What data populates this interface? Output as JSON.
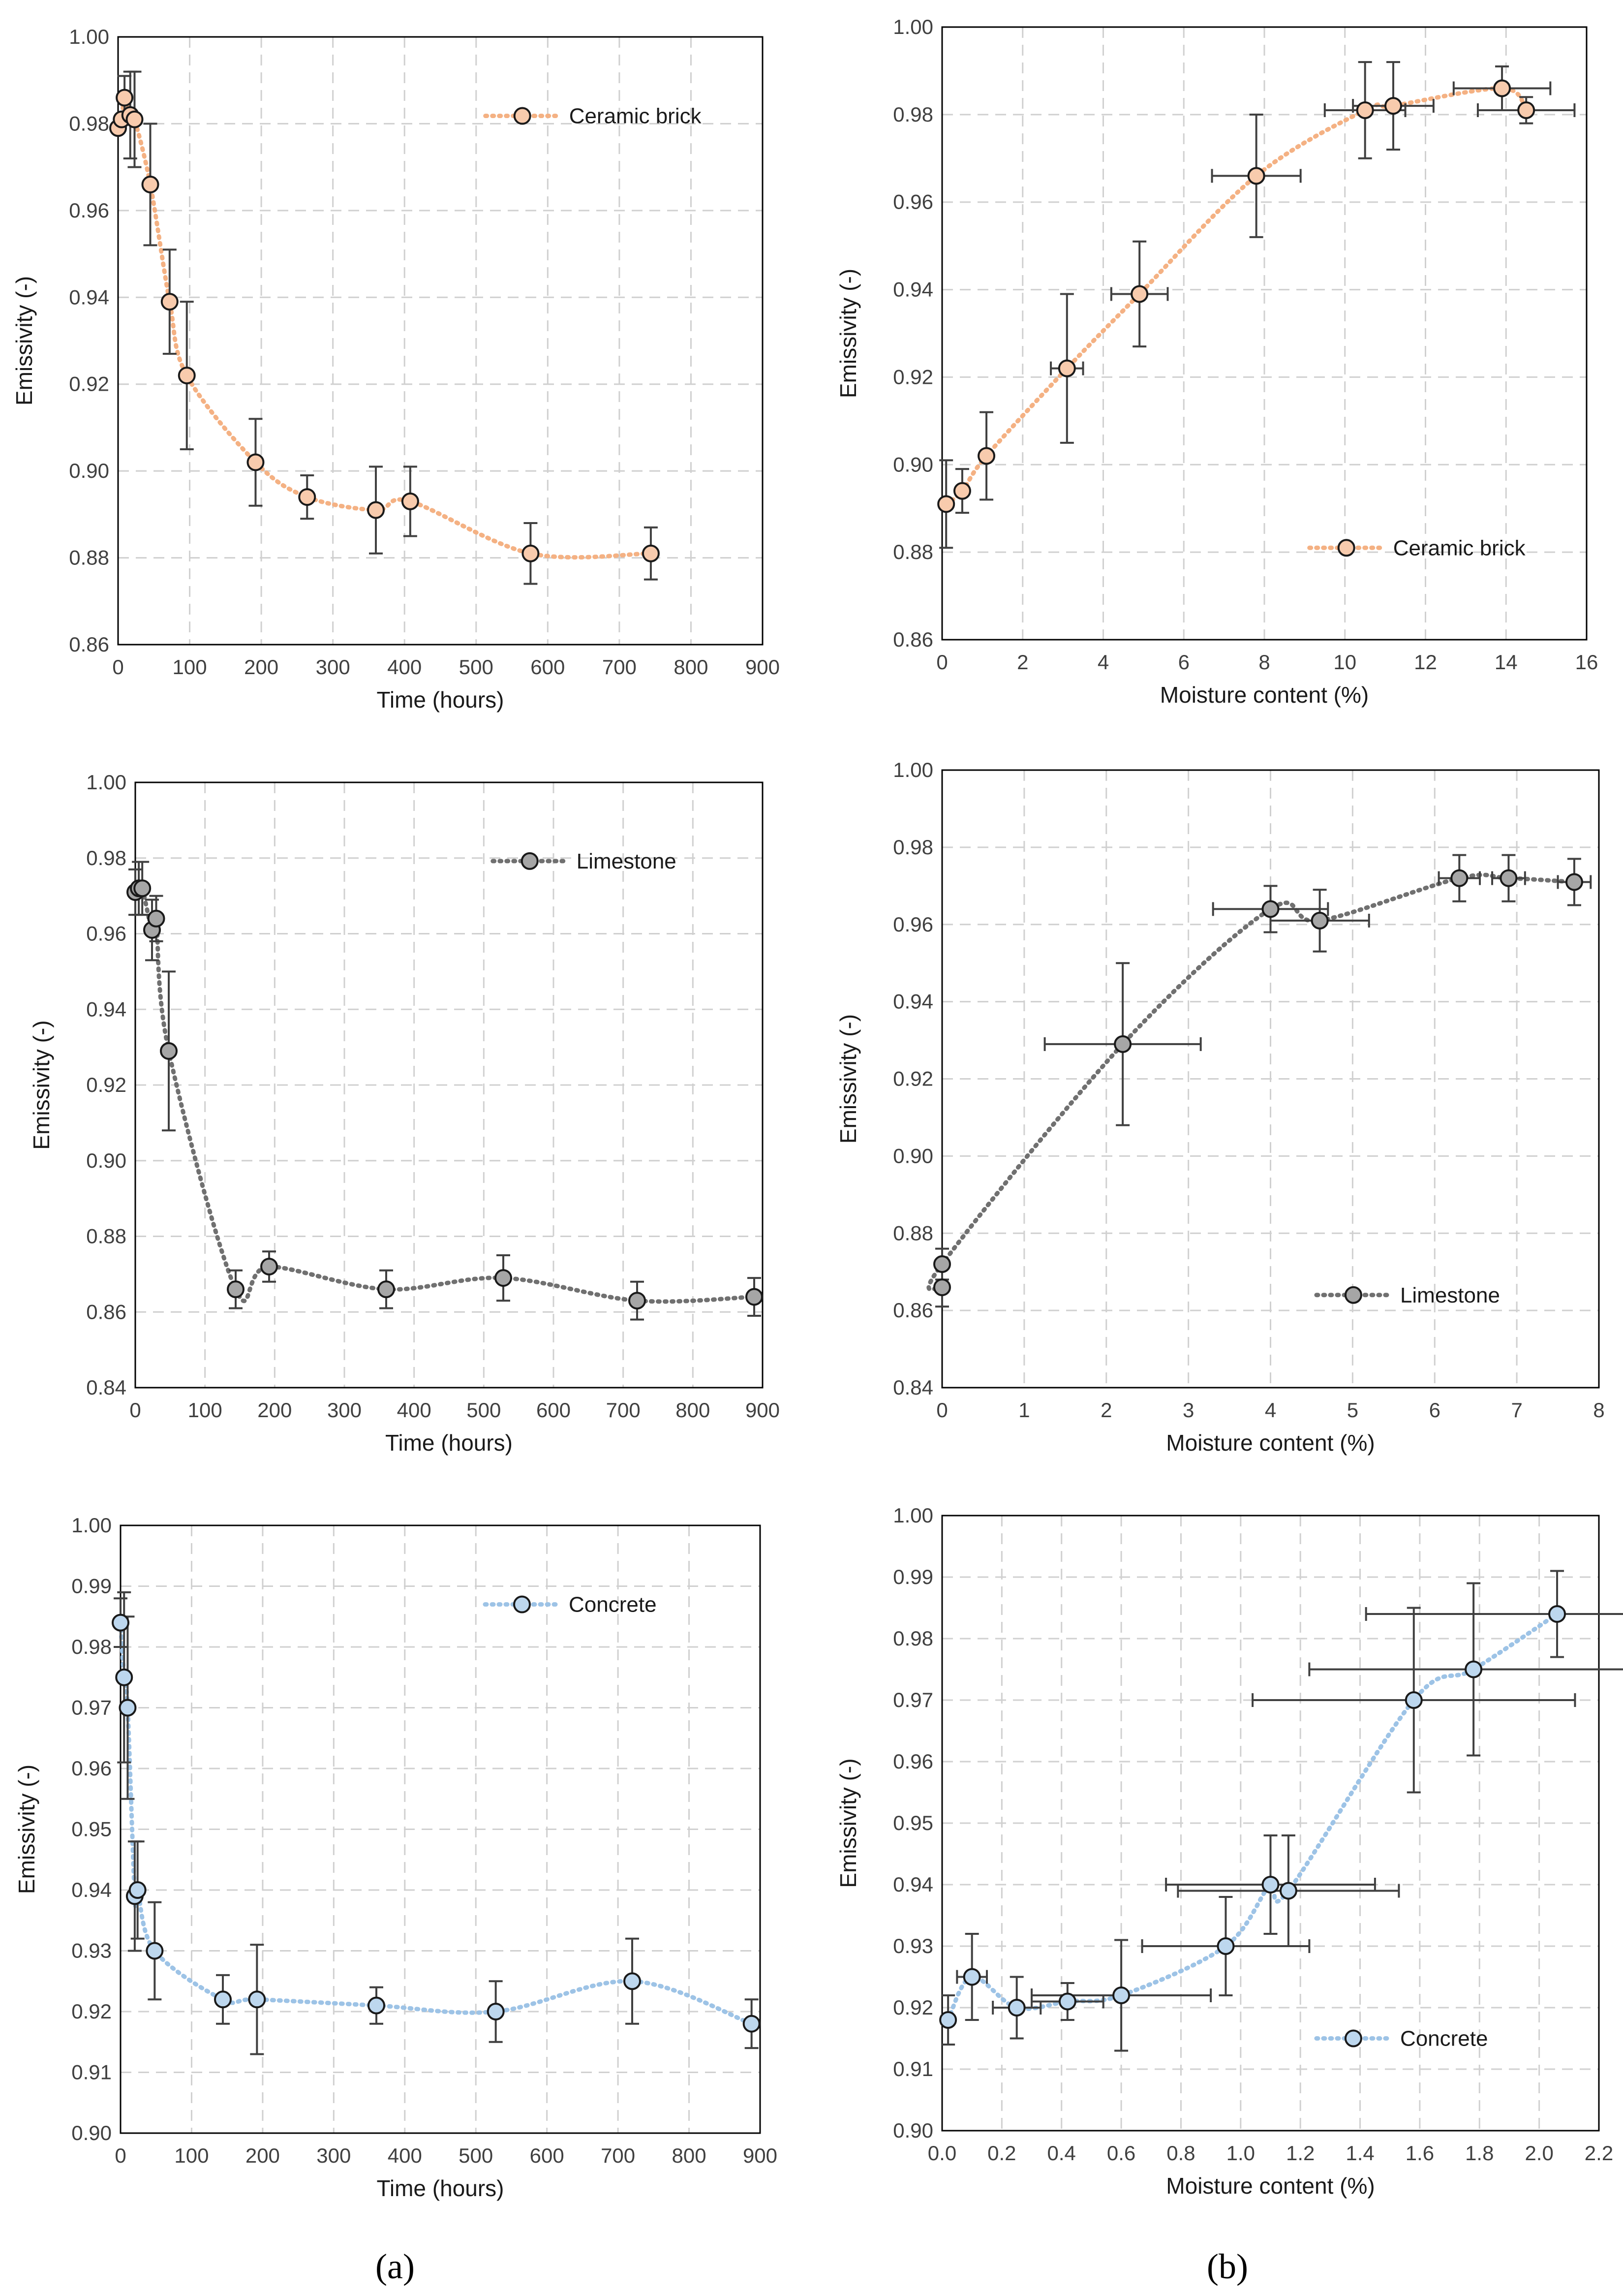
{
  "panel_labels": {
    "a": "(a)",
    "b": "(b)"
  },
  "chart_data": [
    {
      "id": "brick-time",
      "type": "scatter",
      "xlabel": "Time (hours)",
      "ylabel": "Emissivity (-)",
      "xlim": [
        0,
        900
      ],
      "xstep": 100,
      "xdec": 0,
      "ylim": [
        0.86,
        1.0
      ],
      "ystep": 0.02,
      "ydec": 2,
      "legend": {
        "label": "Ceramic brick",
        "position": "top-right"
      },
      "series": [
        {
          "name": "Ceramic brick",
          "color": "#f4b183",
          "fill": "#f8cbad",
          "x": [
            0,
            5,
            9,
            17,
            23,
            45,
            72,
            96,
            192,
            264,
            360,
            408,
            576,
            744
          ],
          "y": [
            0.979,
            0.981,
            0.986,
            0.982,
            0.981,
            0.966,
            0.939,
            0.922,
            0.902,
            0.894,
            0.891,
            0.893,
            0.881,
            0.881
          ],
          "yerr": [
            0,
            0,
            0.005,
            0.01,
            0.011,
            0.014,
            0.012,
            0.017,
            0.01,
            0.005,
            0.01,
            0.008,
            0.007,
            0.006
          ]
        }
      ]
    },
    {
      "id": "brick-moisture",
      "type": "scatter",
      "xlabel": "Moisture content (%)",
      "ylabel": "Emissivity (-)",
      "xlim": [
        0,
        16
      ],
      "xstep": 2,
      "xdec": 0,
      "ylim": [
        0.86,
        1.0
      ],
      "ystep": 0.02,
      "ydec": 2,
      "legend": {
        "label": "Ceramic brick",
        "position": "bottom-right"
      },
      "series": [
        {
          "name": "Ceramic brick",
          "color": "#f4b183",
          "fill": "#f8cbad",
          "x": [
            0.1,
            0.5,
            1.1,
            3.1,
            4.9,
            7.8,
            10.5,
            11.2,
            13.9,
            14.5
          ],
          "y": [
            0.891,
            0.894,
            0.902,
            0.922,
            0.939,
            0.966,
            0.981,
            0.982,
            0.986,
            0.981
          ],
          "yerr": [
            0.01,
            0.005,
            0.01,
            0.017,
            0.012,
            0.014,
            0.011,
            0.01,
            0.005,
            0.003
          ],
          "xerr": [
            0,
            0,
            0,
            0.4,
            0.7,
            1.1,
            1.0,
            1.0,
            1.2,
            1.2
          ]
        }
      ]
    },
    {
      "id": "limestone-time",
      "type": "scatter",
      "xlabel": "Time (hours)",
      "ylabel": "Emissivity (-)",
      "xlim": [
        0,
        900
      ],
      "xstep": 100,
      "xdec": 0,
      "ylim": [
        0.84,
        1.0
      ],
      "ystep": 0.02,
      "ydec": 2,
      "legend": {
        "label": "Limestone",
        "position": "top-right"
      },
      "series": [
        {
          "name": "Limestone",
          "color": "#707070",
          "fill": "#a6a6a6",
          "x": [
            0,
            5,
            10,
            24,
            30,
            48,
            144,
            192,
            360,
            528,
            720,
            888
          ],
          "y": [
            0.971,
            0.972,
            0.972,
            0.961,
            0.964,
            0.929,
            0.866,
            0.872,
            0.866,
            0.869,
            0.863,
            0.864
          ],
          "yerr": [
            0.006,
            0.007,
            0.007,
            0.008,
            0.006,
            0.021,
            0.005,
            0.004,
            0.005,
            0.006,
            0.005,
            0.005
          ]
        }
      ]
    },
    {
      "id": "limestone-moisture",
      "type": "scatter",
      "xlabel": "Moisture content (%)",
      "ylabel": "Emissivity (-)",
      "xlim": [
        0,
        8
      ],
      "xstep": 1,
      "xdec": 0,
      "ylim": [
        0.84,
        1.0
      ],
      "ystep": 0.02,
      "ydec": 2,
      "legend": {
        "label": "Limestone",
        "position": "bottom-right"
      },
      "series": [
        {
          "name": "Limestone",
          "color": "#707070",
          "fill": "#a6a6a6",
          "x": [
            0.0,
            0.0,
            2.2,
            4.0,
            4.6,
            6.3,
            6.9,
            7.7
          ],
          "y": [
            0.866,
            0.872,
            0.929,
            0.964,
            0.961,
            0.972,
            0.972,
            0.971
          ],
          "yerr": [
            0.005,
            0.004,
            0.021,
            0.006,
            0.008,
            0.006,
            0.006,
            0.006
          ],
          "xerr": [
            0,
            0,
            0.95,
            0.7,
            0.6,
            0.25,
            0.2,
            0.2
          ]
        }
      ]
    },
    {
      "id": "concrete-time",
      "type": "scatter",
      "xlabel": "Time (hours)",
      "ylabel": "Emissivity (-)",
      "xlim": [
        0,
        900
      ],
      "xstep": 100,
      "xdec": 0,
      "ylim": [
        0.9,
        1.0
      ],
      "ystep": 0.01,
      "ydec": 2,
      "legend": {
        "label": "Concrete",
        "position": "top-right"
      },
      "series": [
        {
          "name": "Concrete",
          "color": "#9dc3e6",
          "fill": "#bdd7ee",
          "x": [
            0,
            5,
            10,
            20,
            24,
            48,
            144,
            192,
            360,
            528,
            720,
            888
          ],
          "y": [
            0.984,
            0.975,
            0.97,
            0.939,
            0.94,
            0.93,
            0.922,
            0.922,
            0.921,
            0.92,
            0.925,
            0.918
          ],
          "yerr": [
            0.004,
            0.014,
            0.015,
            0.009,
            0.008,
            0.008,
            0.004,
            0.009,
            0.003,
            0.005,
            0.007,
            0.004
          ]
        }
      ]
    },
    {
      "id": "concrete-moisture",
      "type": "scatter",
      "xlabel": "Moisture content (%)",
      "ylabel": "Emissivity (-)",
      "xlim": [
        0,
        2.2
      ],
      "xstep": 0.2,
      "xdec": 1,
      "ylim": [
        0.9,
        1.0
      ],
      "ystep": 0.01,
      "ydec": 2,
      "legend": {
        "label": "Concrete",
        "position": "bottom-right"
      },
      "series": [
        {
          "name": "Concrete",
          "color": "#9dc3e6",
          "fill": "#bdd7ee",
          "x": [
            0.02,
            0.1,
            0.25,
            0.42,
            0.6,
            0.95,
            1.1,
            1.16,
            1.58,
            1.78,
            2.06
          ],
          "y": [
            0.918,
            0.925,
            0.92,
            0.921,
            0.922,
            0.93,
            0.94,
            0.939,
            0.97,
            0.975,
            0.984
          ],
          "yerr": [
            0.004,
            0.007,
            0.005,
            0.003,
            0.009,
            0.008,
            0.008,
            0.009,
            0.015,
            0.014,
            0.007
          ],
          "xerr": [
            0,
            0.05,
            0.08,
            0.12,
            0.3,
            0.28,
            0.35,
            0.37,
            0.54,
            0.55,
            0.64
          ]
        }
      ]
    }
  ]
}
